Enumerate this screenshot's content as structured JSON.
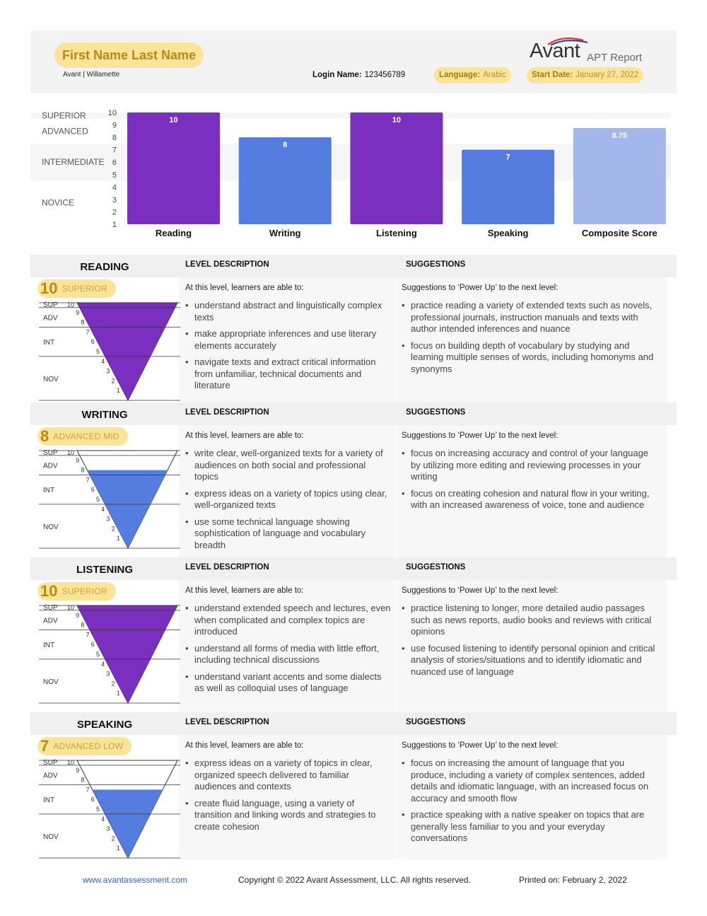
{
  "header": {
    "student_name": "First Name Last Name",
    "org": "Avant | Willamette",
    "login_label": "Login Name:",
    "login_value": "123456789",
    "language_label": "Language:",
    "language_value": "Arabic",
    "start_label": "Start Date:",
    "start_value": "January 27, 2022",
    "logo_brand": "Avant",
    "logo_report": "APT Report",
    "logo_accent_colors": [
      "#e8362b",
      "#1c3f94"
    ]
  },
  "chart_data": {
    "type": "bar",
    "categories": [
      "Reading",
      "Writing",
      "Listening",
      "Speaking",
      "Composite Score"
    ],
    "values": [
      10,
      8,
      10,
      7,
      8.75
    ],
    "value_labels": [
      "10",
      "8",
      "10",
      "7",
      "8.75"
    ],
    "colors": [
      "#7b2fbe",
      "#557de0",
      "#7b2fbe",
      "#557de0",
      "#a3b7ec"
    ],
    "ylim": [
      0,
      10
    ],
    "yticks": [
      1,
      2,
      3,
      4,
      5,
      6,
      7,
      8,
      9,
      10
    ],
    "tiers": [
      {
        "label": "SUPERIOR",
        "from": 9.5,
        "to": 10
      },
      {
        "label": "ADVANCED",
        "from": 7.5,
        "to": 9.5
      },
      {
        "label": "INTERMEDIATE",
        "from": 4.5,
        "to": 7.5
      },
      {
        "label": "NOVICE",
        "from": 0,
        "to": 4.5
      }
    ],
    "tier_bands": [
      "#f6f6f6",
      "#ffffff",
      "#f6f6f6",
      "#ffffff"
    ],
    "grid": false
  },
  "labels": {
    "level_description": "LEVEL DESCRIPTION",
    "suggestions": "SUGGESTIONS",
    "intro_desc": "At this level, learners are able to:",
    "intro_sug": "Suggestions to ‘Power Up’ to the next level:",
    "funnel_levels": [
      "SUP",
      "ADV",
      "INT",
      "NOV"
    ]
  },
  "sections": [
    {
      "title": "READING",
      "score": "10",
      "level": "SUPERIOR",
      "fill_value": 10,
      "fill_color": "#7b2fbe",
      "desc": [
        "understand abstract and linguistically complex texts",
        "make appropriate inferences and use literary elements accurately",
        "navigate texts and extract critical information from unfamiliar, technical documents and literature"
      ],
      "sug": [
        "practice reading a variety of extended texts such as novels, professional journals, instruction manuals and texts with author intended inferences and nuance",
        "focus on building depth of vocabulary by studying and learning multiple senses of words, including homonyms and synonyms"
      ]
    },
    {
      "title": "WRITING",
      "score": "8",
      "level": "ADVANCED MID",
      "fill_value": 8,
      "fill_color": "#557de0",
      "desc": [
        "write clear, well-organized texts for a variety of audiences on both social and professional topics",
        "express ideas on a variety of topics using clear, well-organized texts",
        "use some technical language showing sophistication of language and vocabulary breadth"
      ],
      "sug": [
        "focus on increasing accuracy and control of your language by utilizing more editing and reviewing processes in your writing",
        "focus on creating cohesion and natural flow in your writing, with an increased awareness of voice, tone and audience"
      ]
    },
    {
      "title": "LISTENING",
      "score": "10",
      "level": "SUPERIOR",
      "fill_value": 10,
      "fill_color": "#7b2fbe",
      "desc": [
        "understand extended speech and lectures, even when complicated and complex topics are introduced",
        "understand all forms of media with little effort, including technical discussions",
        "understand variant accents and some dialects as well as colloquial uses of language"
      ],
      "sug": [
        "practice listening to longer, more detailed audio passages such as news reports, audio books and reviews with critical opinions",
        "use focused listening to identify personal opinion and critical analysis of stories/situations and to identify idiomatic and nuanced use of language"
      ]
    },
    {
      "title": "SPEAKING",
      "score": "7",
      "level": "ADVANCED LOW",
      "fill_value": 7,
      "fill_color": "#557de0",
      "desc": [
        "express ideas on a variety of topics in clear, organized speech delivered to familiar audiences and contexts",
        "create fluid language, using a variety of transition and linking words and strategies to create cohesion"
      ],
      "sug": [
        "focus on increasing the amount of language that you produce, including a variety of complex sentences, added details and idiomatic language, with an increased focus on accuracy and smooth flow",
        "practice speaking with a native speaker on topics that are generally less familiar to you and your everyday conversations"
      ]
    }
  ],
  "footer": {
    "website": "www.avantassessment.com",
    "copyright": "Copyright © 2022 Avant Assessment, LLC. All rights reserved.",
    "printed": "Printed on: February 2, 2022"
  }
}
